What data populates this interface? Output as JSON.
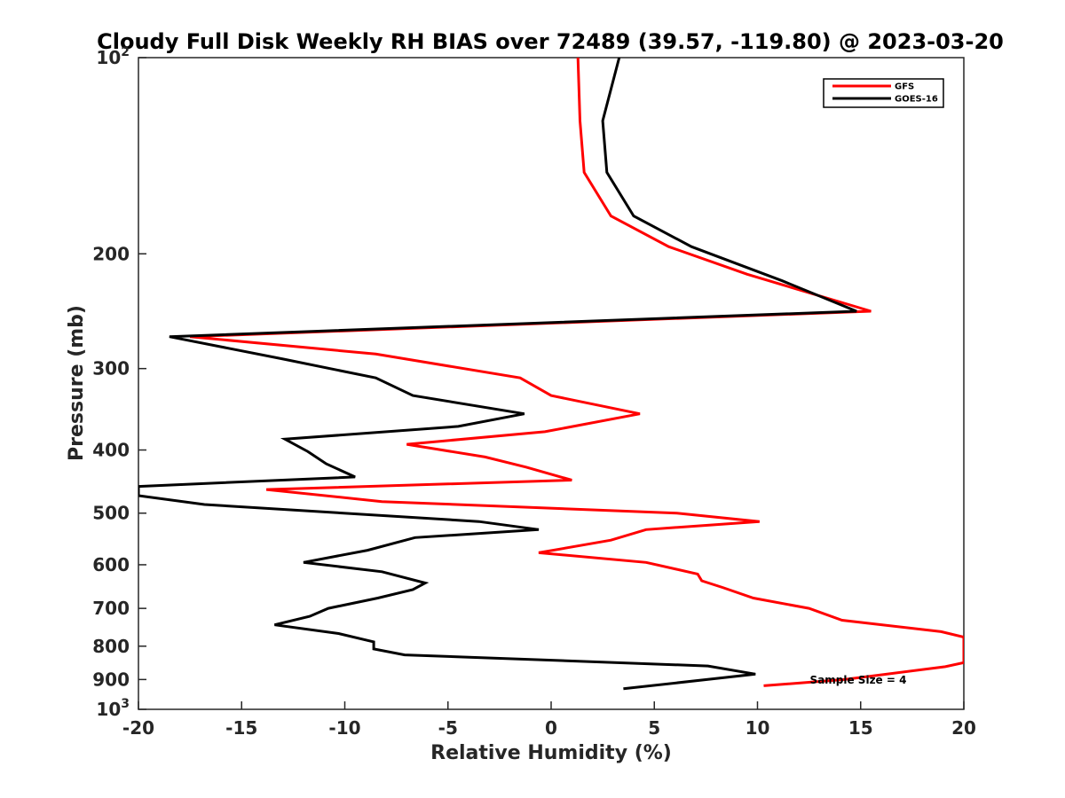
{
  "chart_data": {
    "type": "line",
    "title": "Cloudy Full Disk Weekly RH BIAS over 72489 (39.57, -119.80) @ 2023-03-20",
    "xlabel": "Relative Humidity (%)",
    "ylabel": "Pressure (mb)",
    "xlim": [
      -20,
      20
    ],
    "ylim": [
      100,
      1000
    ],
    "y_scale": "log",
    "y_reversed": true,
    "x_ticks": [
      -20,
      -15,
      -10,
      -5,
      0,
      5,
      10,
      15,
      20
    ],
    "x_tick_labels": [
      "-20",
      "-15",
      "-10",
      "-5",
      "0",
      "5",
      "10",
      "15",
      "20"
    ],
    "y_ticks": [
      100,
      200,
      300,
      400,
      500,
      600,
      700,
      800,
      900,
      1000
    ],
    "y_tick_labels": [
      {
        "base": "10",
        "exp": "2"
      },
      {
        "base": "200",
        "exp": ""
      },
      {
        "base": "300",
        "exp": ""
      },
      {
        "base": "400",
        "exp": ""
      },
      {
        "base": "500",
        "exp": ""
      },
      {
        "base": "600",
        "exp": ""
      },
      {
        "base": "700",
        "exp": ""
      },
      {
        "base": "800",
        "exp": ""
      },
      {
        "base": "900",
        "exp": ""
      },
      {
        "base": "10",
        "exp": "3"
      }
    ],
    "grid": false,
    "legend_position": "top-right",
    "annotation": "Sample Size = 4",
    "series": [
      {
        "name": "GFS",
        "color": "#ff0000",
        "points": [
          [
            1.3,
            100
          ],
          [
            1.4,
            125
          ],
          [
            1.6,
            150
          ],
          [
            2.9,
            175
          ],
          [
            5.7,
            195
          ],
          [
            9.5,
            215
          ],
          [
            15.5,
            245
          ],
          [
            -17.5,
            268
          ],
          [
            -8.5,
            285
          ],
          [
            -1.5,
            310
          ],
          [
            0,
            330
          ],
          [
            4.3,
            352
          ],
          [
            -0.3,
            375
          ],
          [
            -7,
            392
          ],
          [
            -3.2,
            410
          ],
          [
            -1.2,
            425
          ],
          [
            1,
            445
          ],
          [
            -13.8,
            460
          ],
          [
            -8.2,
            480
          ],
          [
            6.1,
            500
          ],
          [
            10.1,
            515
          ],
          [
            4.6,
            530
          ],
          [
            2.9,
            550
          ],
          [
            -0.6,
            575
          ],
          [
            4.6,
            595
          ],
          [
            7.1,
            620
          ],
          [
            7.3,
            635
          ],
          [
            8.3,
            650
          ],
          [
            9.8,
            675
          ],
          [
            12.5,
            700
          ],
          [
            14.1,
            730
          ],
          [
            18.9,
            760
          ],
          [
            20,
            775
          ],
          [
            20,
            848
          ],
          [
            19.1,
            860
          ],
          [
            14.2,
            900
          ],
          [
            10.3,
            920
          ]
        ]
      },
      {
        "name": "GOES-16",
        "color": "#000000",
        "points": [
          [
            3.3,
            100
          ],
          [
            2.5,
            125
          ],
          [
            2.7,
            150
          ],
          [
            4,
            175
          ],
          [
            6.8,
            195
          ],
          [
            11.2,
            220
          ],
          [
            14.8,
            245
          ],
          [
            -18.5,
            268
          ],
          [
            -13,
            290
          ],
          [
            -8.5,
            310
          ],
          [
            -6.7,
            330
          ],
          [
            -1.3,
            352
          ],
          [
            -4.5,
            368
          ],
          [
            -12.9,
            385
          ],
          [
            -11.8,
            402
          ],
          [
            -10.9,
            420
          ],
          [
            -9.5,
            440
          ],
          [
            -20,
            455
          ],
          [
            -20,
            470
          ],
          [
            -16.8,
            485
          ],
          [
            -3.5,
            515
          ],
          [
            -0.6,
            530
          ],
          [
            -6.6,
            545
          ],
          [
            -8.9,
            570
          ],
          [
            -12,
            595
          ],
          [
            -8.2,
            615
          ],
          [
            -6.1,
            640
          ],
          [
            -6.7,
            655
          ],
          [
            -8.4,
            675
          ],
          [
            -10.8,
            700
          ],
          [
            -11.7,
            720
          ],
          [
            -13.4,
            742
          ],
          [
            -10.3,
            765
          ],
          [
            -8.6,
            788
          ],
          [
            -8.6,
            800
          ],
          [
            -8.6,
            808
          ],
          [
            -7.1,
            825
          ],
          [
            7.6,
            858
          ],
          [
            9.9,
            883
          ],
          [
            3.5,
            930
          ]
        ]
      }
    ]
  }
}
